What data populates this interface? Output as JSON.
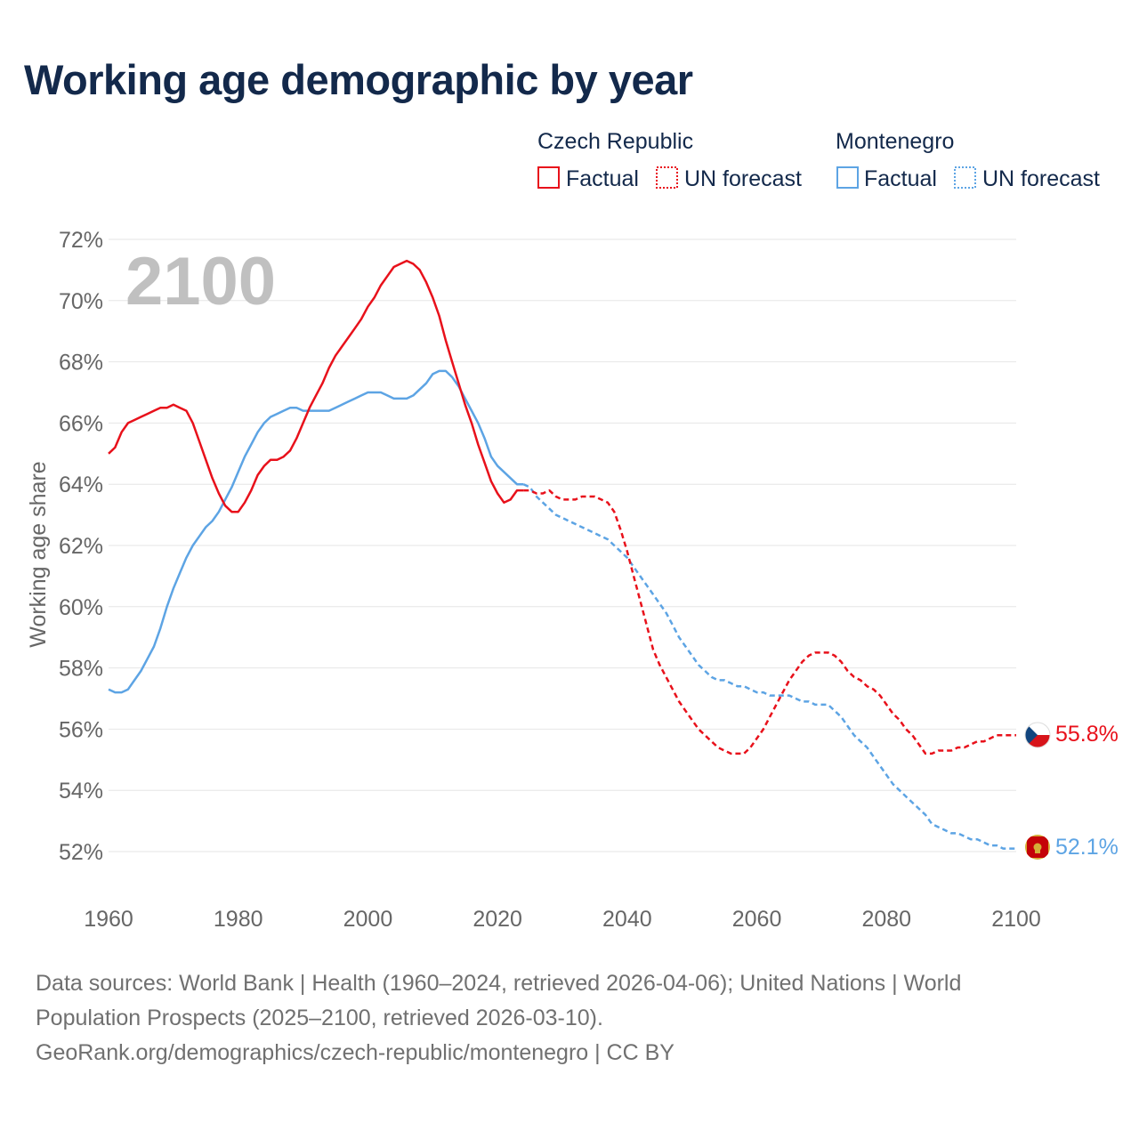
{
  "chart_data": {
    "type": "line",
    "title": "Working age demographic by year",
    "ylabel": "Working age share",
    "xlabel": "",
    "year_overlay": "2100",
    "xlim": [
      1960,
      2100
    ],
    "ylim": [
      51,
      72
    ],
    "x_ticks": [
      1960,
      1980,
      2000,
      2020,
      2040,
      2060,
      2080,
      2100
    ],
    "y_ticks": [
      52,
      54,
      56,
      58,
      60,
      62,
      64,
      66,
      68,
      70,
      72
    ],
    "y_tick_labels": [
      "52%",
      "54%",
      "56%",
      "58%",
      "60%",
      "62%",
      "64%",
      "66%",
      "68%",
      "70%",
      "72%"
    ],
    "x_tick_labels": [
      "1960",
      "1980",
      "2000",
      "2020",
      "2040",
      "2060",
      "2080",
      "2100"
    ],
    "legend": {
      "groups": [
        {
          "name": "Czech Republic",
          "factual": "Factual",
          "forecast": "UN forecast",
          "color": "#e8111b"
        },
        {
          "name": "Montenegro",
          "factual": "Factual",
          "forecast": "UN forecast",
          "color": "#5da4e4"
        }
      ]
    },
    "series": [
      {
        "name": "Czech Republic",
        "color": "#e8111b",
        "end_label": "55.8%",
        "flag": "czech-republic-flag",
        "factual": {
          "x": [
            1960,
            1961,
            1962,
            1963,
            1964,
            1965,
            1966,
            1967,
            1968,
            1969,
            1970,
            1971,
            1972,
            1973,
            1974,
            1975,
            1976,
            1977,
            1978,
            1979,
            1980,
            1981,
            1982,
            1983,
            1984,
            1985,
            1986,
            1987,
            1988,
            1989,
            1990,
            1991,
            1992,
            1993,
            1994,
            1995,
            1996,
            1997,
            1998,
            1999,
            2000,
            2001,
            2002,
            2003,
            2004,
            2005,
            2006,
            2007,
            2008,
            2009,
            2010,
            2011,
            2012,
            2013,
            2014,
            2015,
            2016,
            2017,
            2018,
            2019,
            2020,
            2021,
            2022,
            2023,
            2024
          ],
          "y": [
            65.0,
            65.2,
            65.7,
            66.0,
            66.1,
            66.2,
            66.3,
            66.4,
            66.5,
            66.5,
            66.6,
            66.5,
            66.4,
            66.0,
            65.4,
            64.8,
            64.2,
            63.7,
            63.3,
            63.1,
            63.1,
            63.4,
            63.8,
            64.3,
            64.6,
            64.8,
            64.8,
            64.9,
            65.1,
            65.5,
            66.0,
            66.5,
            66.9,
            67.3,
            67.8,
            68.2,
            68.5,
            68.8,
            69.1,
            69.4,
            69.8,
            70.1,
            70.5,
            70.8,
            71.1,
            71.2,
            71.3,
            71.2,
            71.0,
            70.6,
            70.1,
            69.5,
            68.7,
            68.0,
            67.3,
            66.6,
            66.0,
            65.3,
            64.7,
            64.1,
            63.7,
            63.4,
            63.5,
            63.8,
            63.8
          ]
        },
        "forecast": {
          "x": [
            2024,
            2025,
            2026,
            2027,
            2028,
            2029,
            2030,
            2031,
            2032,
            2033,
            2034,
            2035,
            2036,
            2037,
            2038,
            2039,
            2040,
            2041,
            2042,
            2043,
            2044,
            2045,
            2046,
            2047,
            2048,
            2049,
            2050,
            2051,
            2052,
            2053,
            2054,
            2055,
            2056,
            2057,
            2058,
            2059,
            2060,
            2061,
            2062,
            2063,
            2064,
            2065,
            2066,
            2067,
            2068,
            2069,
            2070,
            2071,
            2072,
            2073,
            2074,
            2075,
            2076,
            2077,
            2078,
            2079,
            2080,
            2081,
            2082,
            2083,
            2084,
            2085,
            2086,
            2087,
            2088,
            2089,
            2090,
            2091,
            2092,
            2093,
            2094,
            2095,
            2096,
            2097,
            2098,
            2099,
            2100
          ],
          "y": [
            63.8,
            63.8,
            63.7,
            63.7,
            63.8,
            63.6,
            63.5,
            63.5,
            63.5,
            63.6,
            63.6,
            63.6,
            63.5,
            63.4,
            63.1,
            62.5,
            61.8,
            61.0,
            60.2,
            59.4,
            58.6,
            58.1,
            57.7,
            57.3,
            56.9,
            56.6,
            56.3,
            56.0,
            55.8,
            55.6,
            55.4,
            55.3,
            55.2,
            55.2,
            55.2,
            55.4,
            55.7,
            56.0,
            56.4,
            56.8,
            57.2,
            57.6,
            57.9,
            58.2,
            58.4,
            58.5,
            58.5,
            58.5,
            58.4,
            58.2,
            57.9,
            57.7,
            57.6,
            57.4,
            57.3,
            57.1,
            56.8,
            56.5,
            56.3,
            56.0,
            55.8,
            55.5,
            55.2,
            55.2,
            55.3,
            55.3,
            55.3,
            55.4,
            55.4,
            55.5,
            55.6,
            55.6,
            55.7,
            55.8,
            55.8,
            55.8,
            55.8
          ]
        }
      },
      {
        "name": "Montenegro",
        "color": "#5da4e4",
        "end_label": "52.1%",
        "flag": "montenegro-flag",
        "factual": {
          "x": [
            1960,
            1961,
            1962,
            1963,
            1964,
            1965,
            1966,
            1967,
            1968,
            1969,
            1970,
            1971,
            1972,
            1973,
            1974,
            1975,
            1976,
            1977,
            1978,
            1979,
            1980,
            1981,
            1982,
            1983,
            1984,
            1985,
            1986,
            1987,
            1988,
            1989,
            1990,
            1991,
            1992,
            1993,
            1994,
            1995,
            1996,
            1997,
            1998,
            1999,
            2000,
            2001,
            2002,
            2003,
            2004,
            2005,
            2006,
            2007,
            2008,
            2009,
            2010,
            2011,
            2012,
            2013,
            2014,
            2015,
            2016,
            2017,
            2018,
            2019,
            2020,
            2021,
            2022,
            2023,
            2024
          ],
          "y": [
            57.3,
            57.2,
            57.2,
            57.3,
            57.6,
            57.9,
            58.3,
            58.7,
            59.3,
            60.0,
            60.6,
            61.1,
            61.6,
            62.0,
            62.3,
            62.6,
            62.8,
            63.1,
            63.5,
            63.9,
            64.4,
            64.9,
            65.3,
            65.7,
            66.0,
            66.2,
            66.3,
            66.4,
            66.5,
            66.5,
            66.4,
            66.4,
            66.4,
            66.4,
            66.4,
            66.5,
            66.6,
            66.7,
            66.8,
            66.9,
            67.0,
            67.0,
            67.0,
            66.9,
            66.8,
            66.8,
            66.8,
            66.9,
            67.1,
            67.3,
            67.6,
            67.7,
            67.7,
            67.5,
            67.2,
            66.8,
            66.4,
            66.0,
            65.5,
            64.9,
            64.6,
            64.4,
            64.2,
            64.0,
            64.0
          ]
        },
        "forecast": {
          "x": [
            2024,
            2025,
            2026,
            2027,
            2028,
            2029,
            2030,
            2031,
            2032,
            2033,
            2034,
            2035,
            2036,
            2037,
            2038,
            2039,
            2040,
            2041,
            2042,
            2043,
            2044,
            2045,
            2046,
            2047,
            2048,
            2049,
            2050,
            2051,
            2052,
            2053,
            2054,
            2055,
            2056,
            2057,
            2058,
            2059,
            2060,
            2061,
            2062,
            2063,
            2064,
            2065,
            2066,
            2067,
            2068,
            2069,
            2070,
            2071,
            2072,
            2073,
            2074,
            2075,
            2076,
            2077,
            2078,
            2079,
            2080,
            2081,
            2082,
            2083,
            2084,
            2085,
            2086,
            2087,
            2088,
            2089,
            2090,
            2091,
            2092,
            2093,
            2094,
            2095,
            2096,
            2097,
            2098,
            2099,
            2100
          ],
          "y": [
            64.0,
            63.9,
            63.6,
            63.4,
            63.2,
            63.0,
            62.9,
            62.8,
            62.7,
            62.6,
            62.5,
            62.4,
            62.3,
            62.2,
            62.0,
            61.8,
            61.6,
            61.3,
            61.0,
            60.7,
            60.4,
            60.1,
            59.8,
            59.4,
            59.0,
            58.7,
            58.4,
            58.1,
            57.9,
            57.7,
            57.6,
            57.6,
            57.5,
            57.4,
            57.4,
            57.3,
            57.2,
            57.2,
            57.1,
            57.1,
            57.1,
            57.1,
            57.0,
            56.9,
            56.9,
            56.8,
            56.8,
            56.8,
            56.6,
            56.4,
            56.1,
            55.8,
            55.6,
            55.4,
            55.1,
            54.8,
            54.5,
            54.2,
            54.0,
            53.8,
            53.6,
            53.4,
            53.2,
            52.9,
            52.8,
            52.7,
            52.6,
            52.6,
            52.5,
            52.4,
            52.4,
            52.3,
            52.2,
            52.2,
            52.1,
            52.1,
            52.1
          ]
        }
      }
    ]
  },
  "footer": {
    "line1": "Data sources: World Bank | Health (1960–2024, retrieved 2026-04-06); United Nations | World",
    "line2": "Population Prospects (2025–2100, retrieved 2026-03-10).",
    "line3": "GeoRank.org/demographics/czech-republic/montenegro | CC BY"
  }
}
